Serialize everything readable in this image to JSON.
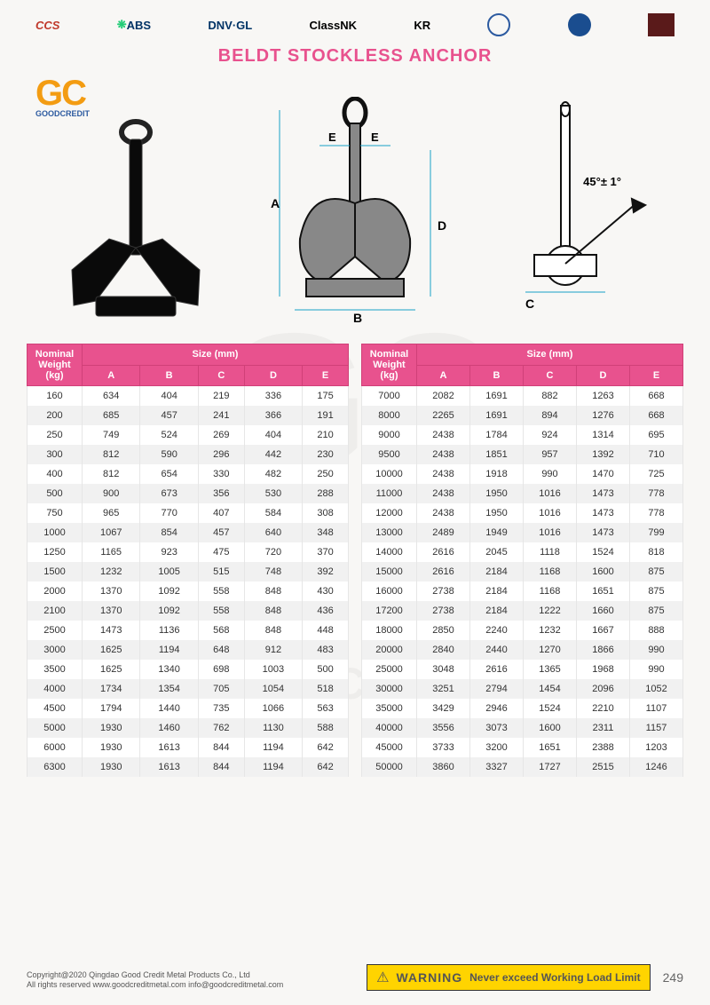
{
  "title": "BELDT STOCKLESS ANCHOR",
  "certs": [
    "CCS",
    "ABS",
    "DNV·GL",
    "ClassNK",
    "KR",
    "•",
    "•",
    "BV"
  ],
  "gc": {
    "big": "GC",
    "sub": "GOODCREDIT"
  },
  "angle_label": "45°± 1°",
  "table_header": {
    "nominal": "Nominal Weight (kg)",
    "size": "Size (mm)",
    "cols": [
      "A",
      "B",
      "C",
      "D",
      "E"
    ]
  },
  "left_rows": [
    [
      "160",
      "634",
      "404",
      "219",
      "336",
      "175"
    ],
    [
      "200",
      "685",
      "457",
      "241",
      "366",
      "191"
    ],
    [
      "250",
      "749",
      "524",
      "269",
      "404",
      "210"
    ],
    [
      "300",
      "812",
      "590",
      "296",
      "442",
      "230"
    ],
    [
      "400",
      "812",
      "654",
      "330",
      "482",
      "250"
    ],
    [
      "500",
      "900",
      "673",
      "356",
      "530",
      "288"
    ],
    [
      "750",
      "965",
      "770",
      "407",
      "584",
      "308"
    ],
    [
      "1000",
      "1067",
      "854",
      "457",
      "640",
      "348"
    ],
    [
      "1250",
      "1165",
      "923",
      "475",
      "720",
      "370"
    ],
    [
      "1500",
      "1232",
      "1005",
      "515",
      "748",
      "392"
    ],
    [
      "2000",
      "1370",
      "1092",
      "558",
      "848",
      "430"
    ],
    [
      "2100",
      "1370",
      "1092",
      "558",
      "848",
      "436"
    ],
    [
      "2500",
      "1473",
      "1136",
      "568",
      "848",
      "448"
    ],
    [
      "3000",
      "1625",
      "1194",
      "648",
      "912",
      "483"
    ],
    [
      "3500",
      "1625",
      "1340",
      "698",
      "1003",
      "500"
    ],
    [
      "4000",
      "1734",
      "1354",
      "705",
      "1054",
      "518"
    ],
    [
      "4500",
      "1794",
      "1440",
      "735",
      "1066",
      "563"
    ],
    [
      "5000",
      "1930",
      "1460",
      "762",
      "1130",
      "588"
    ],
    [
      "6000",
      "1930",
      "1613",
      "844",
      "1194",
      "642"
    ],
    [
      "6300",
      "1930",
      "1613",
      "844",
      "1194",
      "642"
    ]
  ],
  "right_rows": [
    [
      "7000",
      "2082",
      "1691",
      "882",
      "1263",
      "668"
    ],
    [
      "8000",
      "2265",
      "1691",
      "894",
      "1276",
      "668"
    ],
    [
      "9000",
      "2438",
      "1784",
      "924",
      "1314",
      "695"
    ],
    [
      "9500",
      "2438",
      "1851",
      "957",
      "1392",
      "710"
    ],
    [
      "10000",
      "2438",
      "1918",
      "990",
      "1470",
      "725"
    ],
    [
      "11000",
      "2438",
      "1950",
      "1016",
      "1473",
      "778"
    ],
    [
      "12000",
      "2438",
      "1950",
      "1016",
      "1473",
      "778"
    ],
    [
      "13000",
      "2489",
      "1949",
      "1016",
      "1473",
      "799"
    ],
    [
      "14000",
      "2616",
      "2045",
      "1118",
      "1524",
      "818"
    ],
    [
      "15000",
      "2616",
      "2184",
      "1168",
      "1600",
      "875"
    ],
    [
      "16000",
      "2738",
      "2184",
      "1168",
      "1651",
      "875"
    ],
    [
      "17200",
      "2738",
      "2184",
      "1222",
      "1660",
      "875"
    ],
    [
      "18000",
      "2850",
      "2240",
      "1232",
      "1667",
      "888"
    ],
    [
      "20000",
      "2840",
      "2440",
      "1270",
      "1866",
      "990"
    ],
    [
      "25000",
      "3048",
      "2616",
      "1365",
      "1968",
      "990"
    ],
    [
      "30000",
      "3251",
      "2794",
      "1454",
      "2096",
      "1052"
    ],
    [
      "35000",
      "3429",
      "2946",
      "1524",
      "2210",
      "1107"
    ],
    [
      "40000",
      "3556",
      "3073",
      "1600",
      "2311",
      "1157"
    ],
    [
      "45000",
      "3733",
      "3200",
      "1651",
      "2388",
      "1203"
    ],
    [
      "50000",
      "3860",
      "3327",
      "1727",
      "2515",
      "1246"
    ]
  ],
  "footer": {
    "copyright": "Copyright@2020 Qingdao Good Credit Metal Products Co., Ltd",
    "rights": "All rights reserved    www.goodcreditmetal.com    info@goodcreditmetal.com",
    "warning_label": "WARNING",
    "warning_text": "Never exceed Working Load Limit",
    "page": "249"
  },
  "colors": {
    "brand_pink": "#e8528e",
    "warning_bg": "#ffd400"
  }
}
